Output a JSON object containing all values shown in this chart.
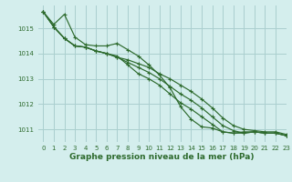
{
  "title": "Graphe pression niveau de la mer (hPa)",
  "bg_color": "#d4eeed",
  "grid_color": "#aacfcf",
  "line_color": "#2d6a2d",
  "xlim": [
    -0.5,
    23
  ],
  "ylim": [
    1010.5,
    1015.9
  ],
  "yticks": [
    1011,
    1012,
    1013,
    1014,
    1015
  ],
  "xticks": [
    0,
    1,
    2,
    3,
    4,
    5,
    6,
    7,
    8,
    9,
    10,
    11,
    12,
    13,
    14,
    15,
    16,
    17,
    18,
    19,
    20,
    21,
    22,
    23
  ],
  "series": [
    [
      1015.65,
      1015.15,
      1015.55,
      1014.65,
      1014.35,
      1014.3,
      1014.3,
      1014.4,
      1014.15,
      1013.9,
      1013.55,
      1013.15,
      1012.65,
      1011.9,
      1011.4,
      1011.1,
      1011.05,
      1010.9,
      1010.85,
      1010.9,
      1010.9,
      1010.85,
      1010.85,
      1010.75
    ],
    [
      1015.65,
      1015.05,
      1014.6,
      1014.3,
      1014.25,
      1014.1,
      1014.0,
      1013.9,
      1013.55,
      1013.2,
      1013.0,
      1012.75,
      1012.4,
      1012.05,
      1011.8,
      1011.5,
      1011.2,
      1010.9,
      1010.85,
      1010.85,
      1010.9,
      1010.85,
      1010.85,
      1010.75
    ],
    [
      1015.65,
      1015.05,
      1014.6,
      1014.3,
      1014.25,
      1014.1,
      1014.0,
      1013.85,
      1013.75,
      1013.6,
      1013.45,
      1013.2,
      1013.0,
      1012.75,
      1012.5,
      1012.2,
      1011.85,
      1011.45,
      1011.15,
      1011.0,
      1010.95,
      1010.9,
      1010.9,
      1010.8
    ],
    [
      1015.65,
      1015.05,
      1014.6,
      1014.3,
      1014.25,
      1014.1,
      1014.0,
      1013.85,
      1013.65,
      1013.45,
      1013.25,
      1013.0,
      1012.7,
      1012.4,
      1012.15,
      1011.85,
      1011.5,
      1011.15,
      1010.95,
      1010.85,
      1010.9,
      1010.85,
      1010.85,
      1010.75
    ]
  ],
  "title_fontsize": 6.5,
  "tick_fontsize": 5.0
}
